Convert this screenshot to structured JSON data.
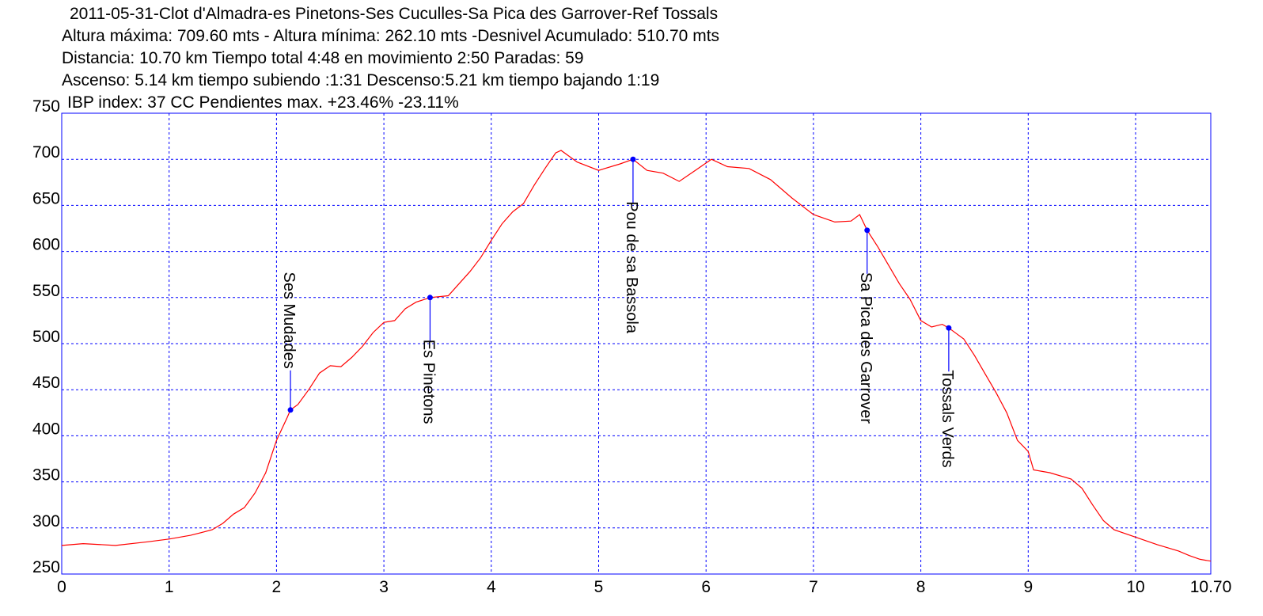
{
  "chart_data": {
    "type": "line",
    "title": "2011-05-31-Clot d'Almadra-es Pinetons-Ses Cuculles-Sa Pica des Garrover-Ref Tossals",
    "stats": [
      "Altura máxima: 709.60 mts - Altura mínima: 262.10 mts -Desnivel Acumulado: 510.70 mts",
      "Distancia: 10.70 km  Tiempo total 4:48  en movimiento 2:50 Paradas: 59",
      "Ascenso: 5.14 km  tiempo subiendo :1:31  Descenso:5.21 km tiempo bajando 1:19",
      "IBP index: 37 CC  Pendientes max. +23.46%  -23.11%"
    ],
    "x": [
      0,
      0.2,
      0.5,
      0.8,
      1.0,
      1.2,
      1.4,
      1.5,
      1.6,
      1.7,
      1.8,
      1.9,
      2.0,
      2.1,
      2.13,
      2.2,
      2.3,
      2.4,
      2.5,
      2.6,
      2.7,
      2.8,
      2.9,
      3.0,
      3.1,
      3.2,
      3.3,
      3.43,
      3.6,
      3.7,
      3.8,
      3.9,
      4.0,
      4.1,
      4.2,
      4.3,
      4.4,
      4.5,
      4.6,
      4.65,
      4.8,
      5.0,
      5.2,
      5.32,
      5.45,
      5.6,
      5.75,
      5.9,
      6.05,
      6.2,
      6.4,
      6.6,
      6.8,
      7.0,
      7.2,
      7.35,
      7.43,
      7.5,
      7.6,
      7.7,
      7.8,
      7.9,
      8.0,
      8.1,
      8.2,
      8.26,
      8.4,
      8.5,
      8.6,
      8.7,
      8.8,
      8.9,
      9.0,
      9.05,
      9.2,
      9.4,
      9.5,
      9.6,
      9.7,
      9.8,
      10.0,
      10.2,
      10.4,
      10.5,
      10.6,
      10.7
    ],
    "y": [
      281,
      283,
      281,
      285,
      288,
      292,
      298,
      305,
      315,
      322,
      338,
      360,
      395,
      420,
      428,
      434,
      450,
      468,
      476,
      475,
      485,
      497,
      512,
      523,
      525,
      538,
      545,
      550,
      552,
      565,
      578,
      593,
      612,
      630,
      643,
      652,
      672,
      690,
      707,
      709.6,
      697,
      688,
      695,
      700,
      688,
      685,
      676,
      688,
      700,
      692,
      690,
      678,
      658,
      640,
      632,
      633,
      640,
      623,
      605,
      585,
      565,
      548,
      525,
      518,
      521,
      517,
      505,
      487,
      467,
      447,
      425,
      395,
      383,
      363,
      360,
      353,
      343,
      325,
      308,
      298,
      290,
      282,
      275,
      270,
      266,
      264
    ],
    "color": "#ff0000",
    "waypoints": [
      {
        "label": "Ses Mudades",
        "x": 2.13,
        "y": 428
      },
      {
        "label": "Es Pinetons",
        "x": 3.43,
        "y": 550
      },
      {
        "label": "Pou de sa Bassola",
        "x": 5.32,
        "y": 700
      },
      {
        "label": "Sa Pica des Garrover",
        "x": 7.5,
        "y": 623
      },
      {
        "label": "Tossals Verds",
        "x": 8.26,
        "y": 517
      }
    ],
    "waypoint_color": "#0000ff",
    "frame_color": "#0000ff",
    "xlim": [
      0,
      10.7
    ],
    "ylim": [
      250,
      750
    ],
    "xticks": [
      0,
      1,
      2,
      3,
      4,
      5,
      6,
      7,
      8,
      9,
      10,
      {
        "value": 10.7,
        "label": "10.70"
      }
    ],
    "yticks": [
      250,
      300,
      350,
      400,
      450,
      500,
      550,
      600,
      650,
      700,
      750
    ],
    "grid": true
  }
}
